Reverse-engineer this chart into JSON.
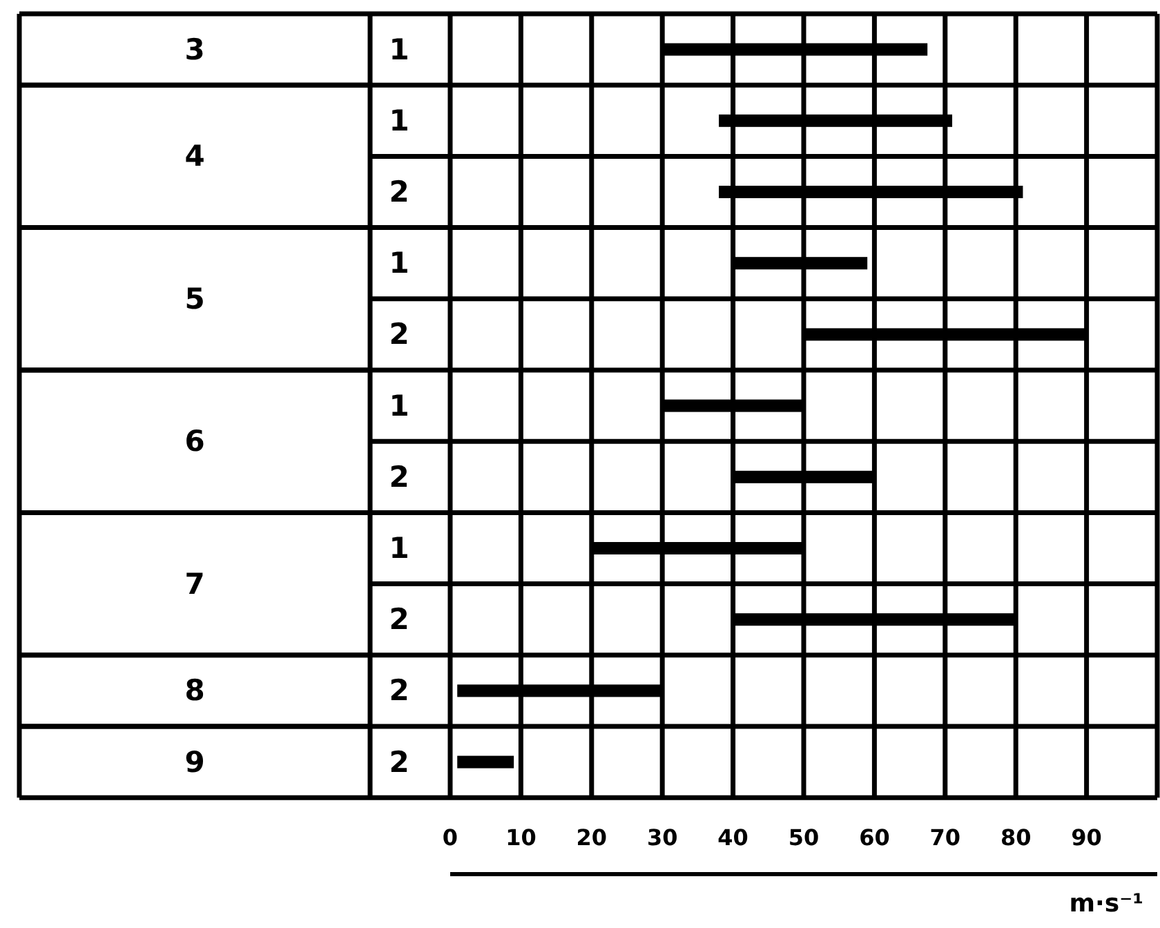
{
  "chart_data": {
    "type": "bar",
    "orientation": "horizontal",
    "categories": [
      "1",
      "1",
      "2",
      "1",
      "2",
      "1",
      "2",
      "1",
      "2",
      "2",
      "2"
    ],
    "base": [
      30,
      38,
      38,
      40,
      50,
      30,
      40,
      20,
      40,
      1,
      1
    ],
    "values": [
      37.5,
      33,
      43,
      19,
      40,
      20,
      20,
      30,
      40,
      29,
      8
    ],
    "color": "#000000",
    "annotations": [
      "3",
      "4",
      "5",
      "6",
      "7",
      "8",
      "9"
    ],
    "xlim": [
      0,
      100
    ],
    "xticks": [
      0,
      10,
      20,
      30,
      40,
      50,
      60,
      70,
      80,
      90,
      {
        "value": 100,
        "label": null
      }
    ],
    "xlabel": "m·s⁻¹",
    "grid": true
  }
}
